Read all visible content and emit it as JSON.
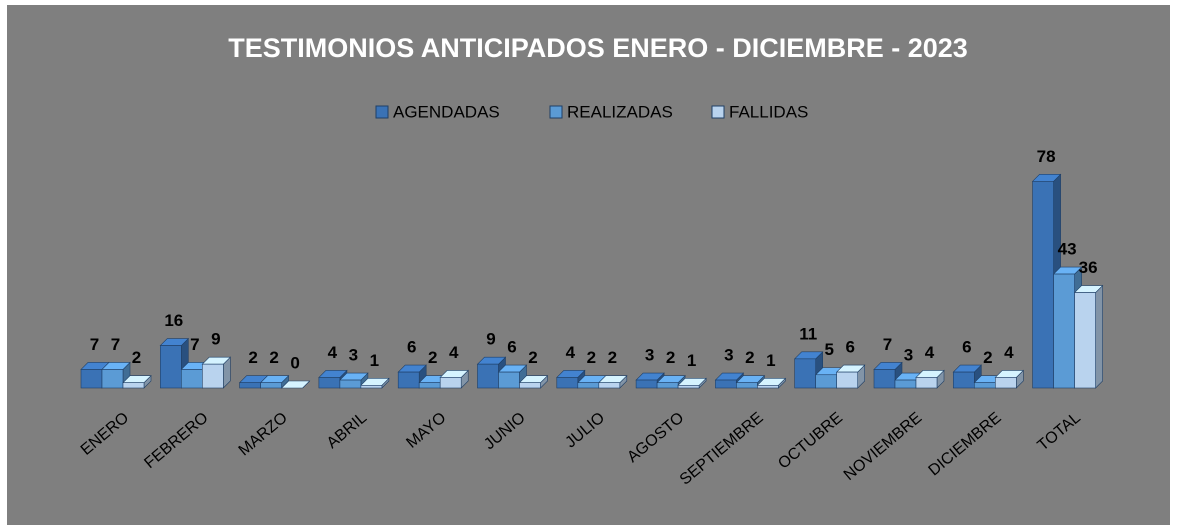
{
  "chart_data": {
    "type": "bar",
    "title": "TESTIMONIOS  ANTICIPADOS  ENERO - DICIEMBRE - 2023",
    "categories": [
      "ENERO",
      "FEBRERO",
      "MARZO",
      "ABRIL",
      "MAYO",
      "JUNIO",
      "JULIO",
      "AGOSTO",
      "SEPTIEMBRE",
      "OCTUBRE",
      "NOVIEMBRE",
      "DICIEMBRE",
      "TOTAL"
    ],
    "series": [
      {
        "name": "AGENDADAS",
        "color": "#3a72b5",
        "values": [
          7,
          16,
          2,
          4,
          6,
          9,
          4,
          3,
          3,
          11,
          7,
          6,
          78
        ]
      },
      {
        "name": "REALIZADAS",
        "color": "#5b9bd5",
        "values": [
          7,
          7,
          2,
          3,
          2,
          6,
          2,
          2,
          2,
          5,
          3,
          2,
          43
        ]
      },
      {
        "name": "FALLIDAS",
        "color": "#b9d3ee",
        "values": [
          2,
          9,
          0,
          1,
          4,
          2,
          2,
          1,
          1,
          6,
          4,
          4,
          36
        ]
      }
    ],
    "ylim": [
      0,
      80
    ],
    "legend": "top"
  }
}
